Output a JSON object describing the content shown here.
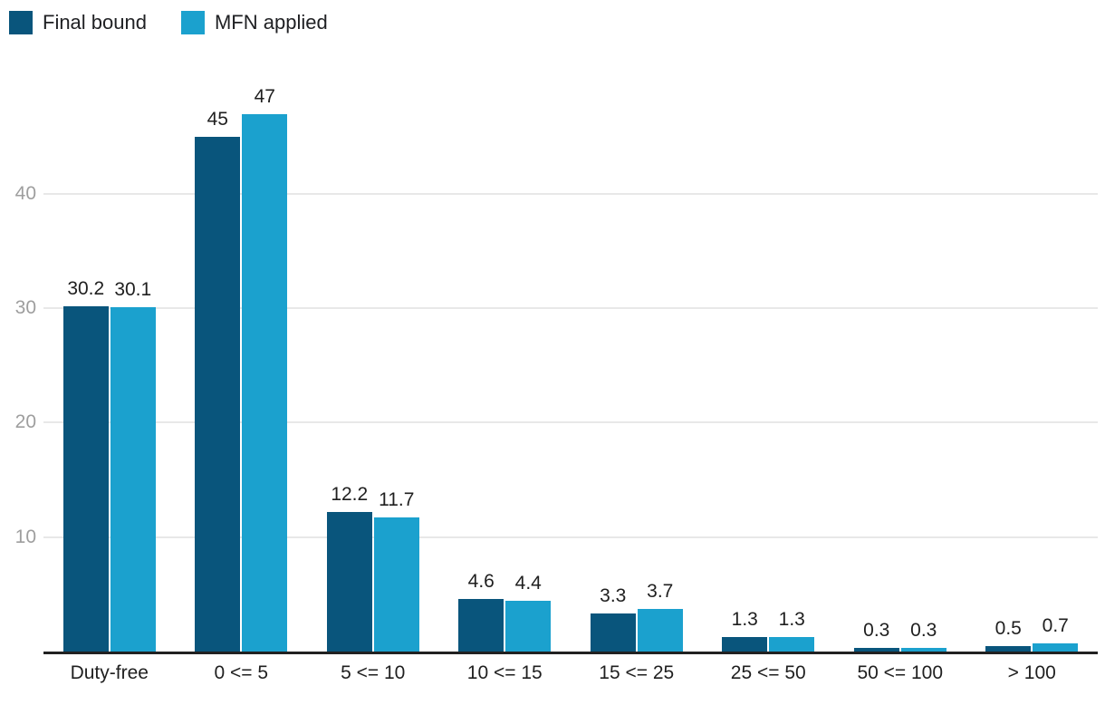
{
  "legend": {
    "items": [
      {
        "label": "Final bound",
        "color": "#09557c"
      },
      {
        "label": "MFN applied",
        "color": "#1ba1ce"
      }
    ]
  },
  "chart_data": {
    "type": "bar",
    "categories": [
      "Duty-free",
      "0 <= 5",
      "5 <= 10",
      "10 <= 15",
      "15 <= 25",
      "25 <= 50",
      "50 <= 100",
      "> 100"
    ],
    "series": [
      {
        "name": "Final bound",
        "color": "#09557c",
        "values": [
          30.2,
          45,
          12.2,
          4.6,
          3.3,
          1.3,
          0.3,
          0.5
        ]
      },
      {
        "name": "MFN applied",
        "color": "#1ba1ce",
        "values": [
          30.1,
          47,
          11.7,
          4.4,
          3.7,
          1.3,
          0.3,
          0.7
        ]
      }
    ],
    "title": "",
    "xlabel": "",
    "ylabel": "",
    "yticks": [
      10,
      20,
      30,
      40
    ],
    "ylim": [
      0,
      51
    ],
    "grid": true,
    "legend_position": "top-left",
    "value_labels": true,
    "colors": {
      "grid_line": "#e8e8e8",
      "axis_line": "#212121",
      "y_tick_text": "#9e9e9e",
      "x_tick_text": "#1f1f1f",
      "value_label_text": "#1f1f1f",
      "background": "#ffffff"
    }
  }
}
